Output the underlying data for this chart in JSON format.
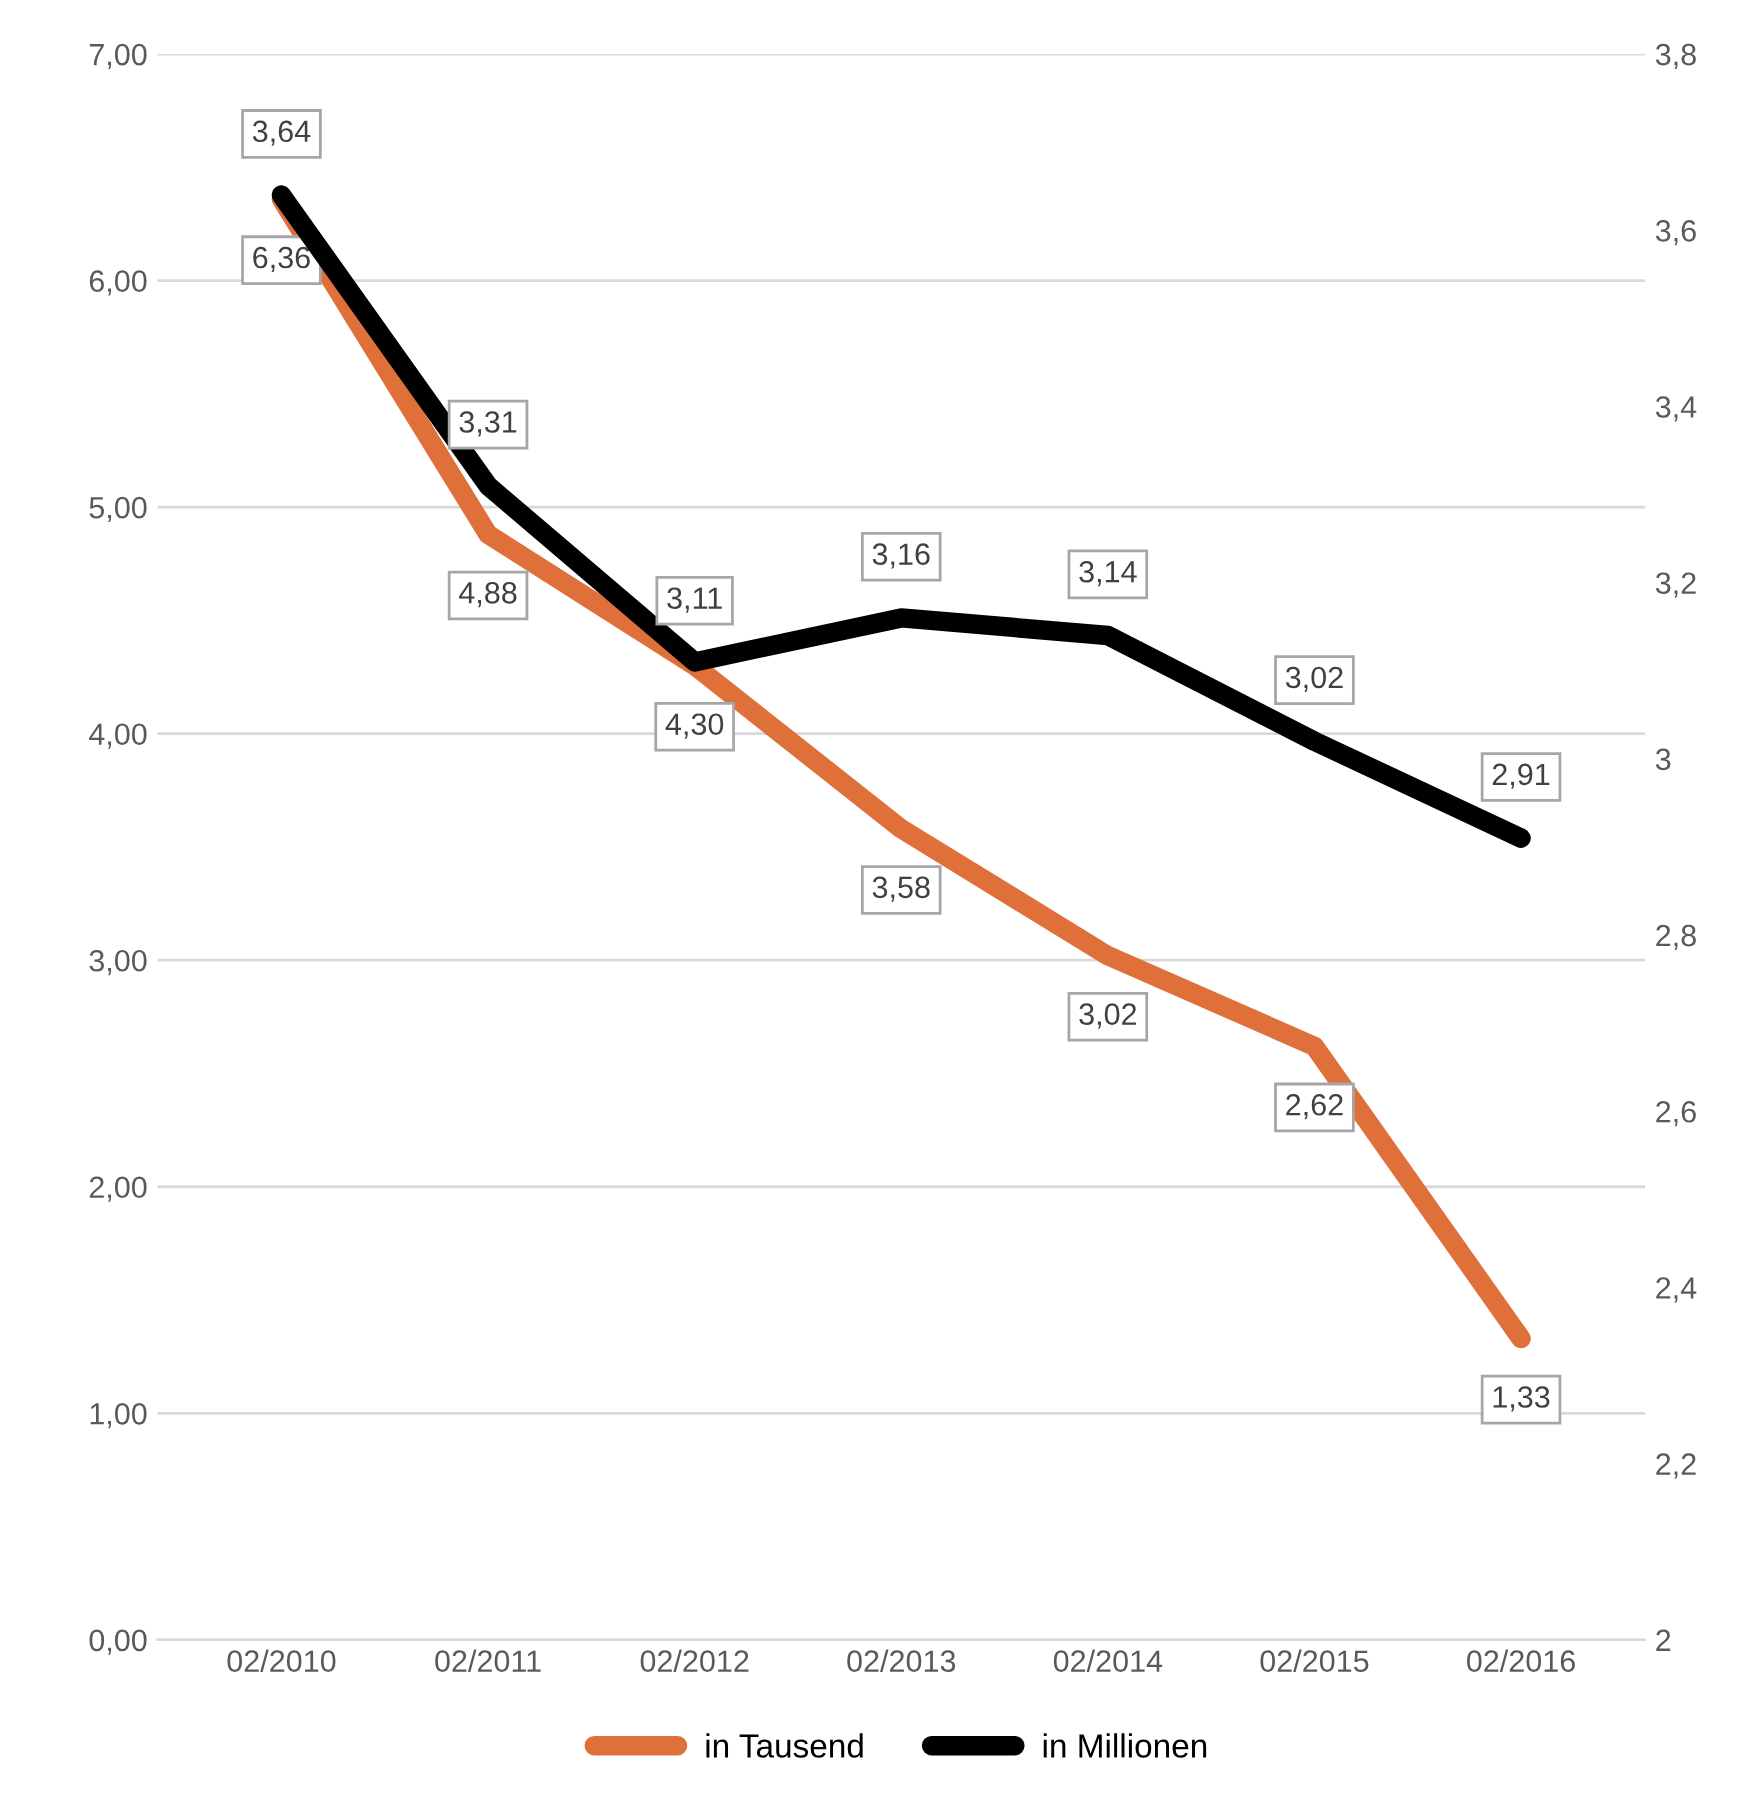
{
  "chart_data": {
    "type": "line",
    "categories": [
      "02/2010",
      "02/2011",
      "02/2012",
      "02/2013",
      "02/2014",
      "02/2015",
      "02/2016"
    ],
    "series": [
      {
        "name": "in Tausend",
        "color": "#e0703a",
        "values": [
          6.36,
          4.88,
          4.3,
          3.58,
          3.02,
          2.62,
          1.33
        ],
        "value_labels": [
          "6,36",
          "4,88",
          "4,30",
          "3,58",
          "3,02",
          "2,62",
          "1,33"
        ]
      },
      {
        "name": "in Millionen",
        "color": "#000000",
        "axis": "y2",
        "values": [
          3.64,
          3.31,
          3.11,
          3.16,
          3.14,
          3.02,
          2.91
        ],
        "value_labels": [
          "3,64",
          "3,31",
          "3,11",
          "3,16",
          "3,14",
          "3,02",
          "2,91"
        ]
      }
    ],
    "ylim": [
      0,
      7
    ],
    "yticks": [
      {
        "value": 0,
        "label": "0,00"
      },
      {
        "value": 1,
        "label": "1,00"
      },
      {
        "value": 2,
        "label": "2,00"
      },
      {
        "value": 3,
        "label": "3,00"
      },
      {
        "value": 4,
        "label": "4,00"
      },
      {
        "value": 5,
        "label": "5,00"
      },
      {
        "value": 6,
        "label": "6,00"
      },
      {
        "value": 7,
        "label": "7,00"
      }
    ],
    "y2lim": [
      2,
      3.8
    ],
    "y2ticks": [
      2,
      {
        "value": 2.2,
        "label": "2,2"
      },
      {
        "value": 2.4,
        "label": "2,4"
      },
      {
        "value": 2.6,
        "label": "2,6"
      },
      {
        "value": 2.8,
        "label": "2,8"
      },
      3,
      {
        "value": 3.2,
        "label": "3,2"
      },
      {
        "value": 3.4,
        "label": "3,4"
      },
      {
        "value": 3.6,
        "label": "3,6"
      },
      {
        "value": 3.8,
        "label": "3,8"
      }
    ],
    "grid": "y",
    "legend": "bottom",
    "marker": "none",
    "line_style": "solid"
  }
}
